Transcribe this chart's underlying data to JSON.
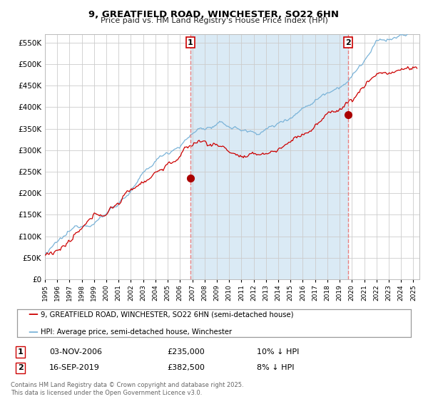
{
  "title": "9, GREATFIELD ROAD, WINCHESTER, SO22 6HN",
  "subtitle": "Price paid vs. HM Land Registry's House Price Index (HPI)",
  "legend_line1": "9, GREATFIELD ROAD, WINCHESTER, SO22 6HN (semi-detached house)",
  "legend_line2": "HPI: Average price, semi-detached house, Winchester",
  "footnote": "Contains HM Land Registry data © Crown copyright and database right 2025.\nThis data is licensed under the Open Government Licence v3.0.",
  "marker1_label": "1",
  "marker1_date": "03-NOV-2006",
  "marker1_price": "£235,000",
  "marker1_hpi": "10% ↓ HPI",
  "marker1_year": 2006.85,
  "marker1_value": 235000,
  "marker2_label": "2",
  "marker2_date": "16-SEP-2019",
  "marker2_price": "£382,500",
  "marker2_hpi": "8% ↓ HPI",
  "marker2_year": 2019.71,
  "marker2_value": 382500,
  "hpi_color": "#7ab3d8",
  "price_color": "#cc0000",
  "marker_color": "#aa0000",
  "vline_color": "#e88080",
  "shade_color": "#daeaf5",
  "ylim": [
    0,
    570000
  ],
  "xlim_start": 1995,
  "xlim_end": 2025.5,
  "background_color": "#ffffff",
  "grid_color": "#cccccc"
}
